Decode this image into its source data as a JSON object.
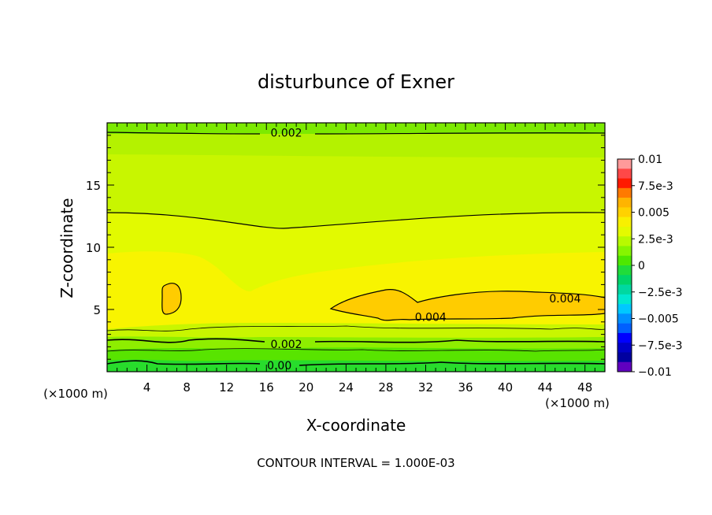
{
  "chart_data": {
    "type": "heatmap",
    "title": "disturbunce of Exner",
    "xlabel": "X-coordinate",
    "ylabel": "Z-coordinate",
    "x_unit_left": "(×1000 m)",
    "x_unit_right": "(×1000 m)",
    "xlim": [
      0,
      50
    ],
    "ylim": [
      0,
      20
    ],
    "x_ticks": [
      4,
      8,
      12,
      16,
      20,
      24,
      28,
      32,
      36,
      40,
      44,
      48
    ],
    "y_ticks": [
      5,
      10,
      15
    ],
    "footer": "CONTOUR INTERVAL = 1.000E-03",
    "contour_interval": 0.001,
    "colorbar": {
      "min": -0.01,
      "max": 0.01,
      "labels": [
        "0.01",
        "7.5e-3",
        "0.005",
        "2.5e-3",
        "0",
        "−2.5e-3",
        "−0.005",
        "−7.5e-3",
        "−0.01"
      ],
      "colors": [
        "#ff9a9a",
        "#ff4848",
        "#ff1a00",
        "#ff7a00",
        "#ffb400",
        "#ffd200",
        "#f8f000",
        "#e4fa00",
        "#b8fa00",
        "#86f500",
        "#4ee800",
        "#20dc3a",
        "#00d468",
        "#00d8a0",
        "#00e8d0",
        "#00c8ff",
        "#0090ff",
        "#0060ff",
        "#0000ff",
        "#0000c8",
        "#0000a0",
        "#6000c0"
      ]
    },
    "contour_labels": [
      {
        "text": "0.002",
        "x": 18,
        "z": 19.2
      },
      {
        "text": "0.002",
        "x": 18,
        "z": 2.2
      },
      {
        "text": "0.00",
        "x": 17.3,
        "z": 0.5
      },
      {
        "text": "0.004",
        "x": 46,
        "z": 5.9
      },
      {
        "text": "0.004",
        "x": 32.5,
        "z": 4.4
      }
    ]
  }
}
